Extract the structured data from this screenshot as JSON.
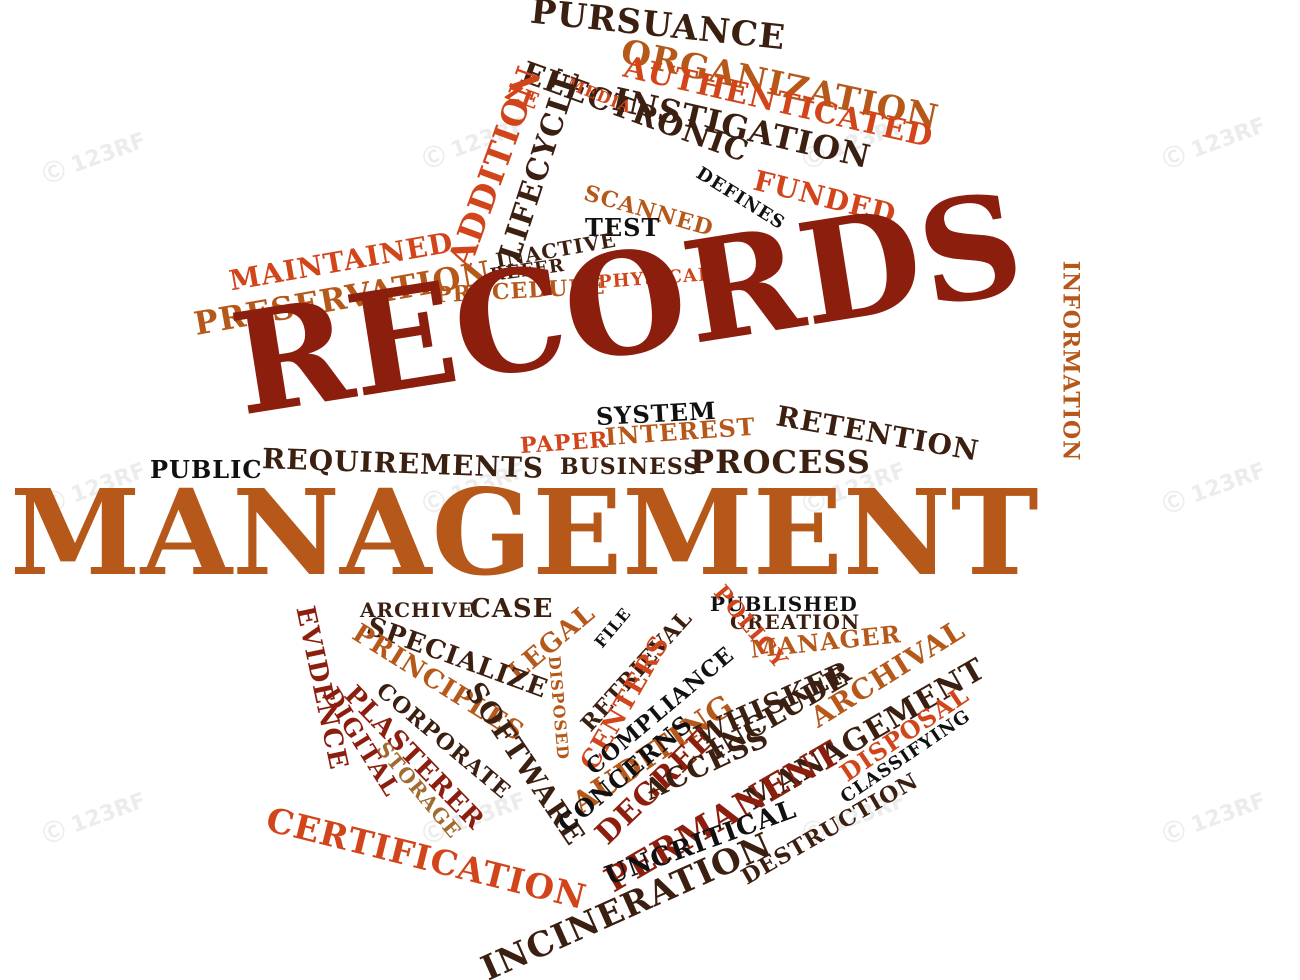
{
  "colors": {
    "dark_brown": "#3b1f10",
    "black": "#111111",
    "rust": "#d2451b",
    "dark_red": "#8c1e0e",
    "orange_brown": "#b5581a",
    "tan": "#a06a30"
  },
  "watermark": {
    "text": "123RF",
    "logo": "123rf-watermark"
  },
  "words": [
    {
      "text": "PURSUANCE",
      "c": "dark_brown"
    },
    {
      "text": "ORGANIZATION",
      "c": "orange_brown"
    },
    {
      "text": "AUTHENTICATED",
      "c": "rust"
    },
    {
      "text": "INSTIGATION",
      "c": "dark_brown"
    },
    {
      "text": "FUNDED",
      "c": "rust"
    },
    {
      "text": "DEFINES",
      "c": "black"
    },
    {
      "text": "ELECTRONIC",
      "c": "dark_brown"
    },
    {
      "text": "MEDIA",
      "c": "rust"
    },
    {
      "text": "ZE",
      "c": "rust"
    },
    {
      "text": "LIFECYCLE",
      "c": "dark_brown"
    },
    {
      "text": "ADDITION",
      "c": "rust"
    },
    {
      "text": "SCANNED",
      "c": "orange_brown"
    },
    {
      "text": "TEST",
      "c": "black"
    },
    {
      "text": "INACTIVE",
      "c": "dark_brown"
    },
    {
      "text": "REFER",
      "c": "dark_brown"
    },
    {
      "text": "PHYSICAL",
      "c": "rust"
    },
    {
      "text": "PROCEDURE",
      "c": "orange_brown"
    },
    {
      "text": "MAINTAINED",
      "c": "rust"
    },
    {
      "text": "PRESERVATION",
      "c": "orange_brown"
    },
    {
      "text": "INFORMATION",
      "c": "orange_brown"
    },
    {
      "text": "RECORDS",
      "c": "dark_red"
    },
    {
      "text": "SYSTEM",
      "c": "black"
    },
    {
      "text": "RETENTION",
      "c": "dark_brown"
    },
    {
      "text": "PAPER",
      "c": "rust"
    },
    {
      "text": "INTEREST",
      "c": "orange_brown"
    },
    {
      "text": "PUBLIC",
      "c": "black"
    },
    {
      "text": "REQUIREMENTS",
      "c": "dark_brown"
    },
    {
      "text": "BUSINESS",
      "c": "dark_brown"
    },
    {
      "text": "PROCESS",
      "c": "dark_brown"
    },
    {
      "text": "MANAGEMENT",
      "c": "orange_brown"
    },
    {
      "text": "EVIDENCE",
      "c": "dark_red"
    },
    {
      "text": "ARCHIVE",
      "c": "dark_brown"
    },
    {
      "text": "CASE",
      "c": "dark_brown"
    },
    {
      "text": "PUBLISHED",
      "c": "black"
    },
    {
      "text": "CREATION",
      "c": "dark_brown"
    },
    {
      "text": "MANAGER",
      "c": "orange_brown"
    },
    {
      "text": "FILE",
      "c": "black"
    },
    {
      "text": "RETRIEVAL",
      "c": "dark_brown"
    },
    {
      "text": "POLICY",
      "c": "rust"
    },
    {
      "text": "LEGAL",
      "c": "orange_brown"
    },
    {
      "text": "SPECIALIZE",
      "c": "dark_brown"
    },
    {
      "text": "PRINCIPLES",
      "c": "orange_brown"
    },
    {
      "text": "CENTERS",
      "c": "rust"
    },
    {
      "text": "COMPLIANCE",
      "c": "black"
    },
    {
      "text": "AUDITING",
      "c": "orange_brown"
    },
    {
      "text": "WHISKER",
      "c": "dark_brown"
    },
    {
      "text": "ARCHIVAL",
      "c": "orange_brown"
    },
    {
      "text": "DISPOSED",
      "c": "orange_brown"
    },
    {
      "text": "CORPORATE",
      "c": "dark_brown"
    },
    {
      "text": "SOFTWARE",
      "c": "dark_brown"
    },
    {
      "text": "DIGITAL",
      "c": "dark_red"
    },
    {
      "text": "PLASTERER",
      "c": "dark_red"
    },
    {
      "text": "STORAGE",
      "c": "tan"
    },
    {
      "text": "CONCERNS",
      "c": "black"
    },
    {
      "text": "DEGREE",
      "c": "dark_red"
    },
    {
      "text": "INCLUDE",
      "c": "dark_brown"
    },
    {
      "text": "MANAGEMENT",
      "c": "dark_brown"
    },
    {
      "text": "DISPOSAL",
      "c": "rust"
    },
    {
      "text": "CLASSIFYING",
      "c": "black"
    },
    {
      "text": "ACCESS",
      "c": "dark_brown"
    },
    {
      "text": "PERMANENT",
      "c": "dark_red"
    },
    {
      "text": "UNCRITICAL",
      "c": "black"
    },
    {
      "text": "DESTRUCTION",
      "c": "dark_brown"
    },
    {
      "text": "INCINERATION",
      "c": "dark_brown"
    },
    {
      "text": "CERTIFICATION",
      "c": "rust"
    }
  ]
}
